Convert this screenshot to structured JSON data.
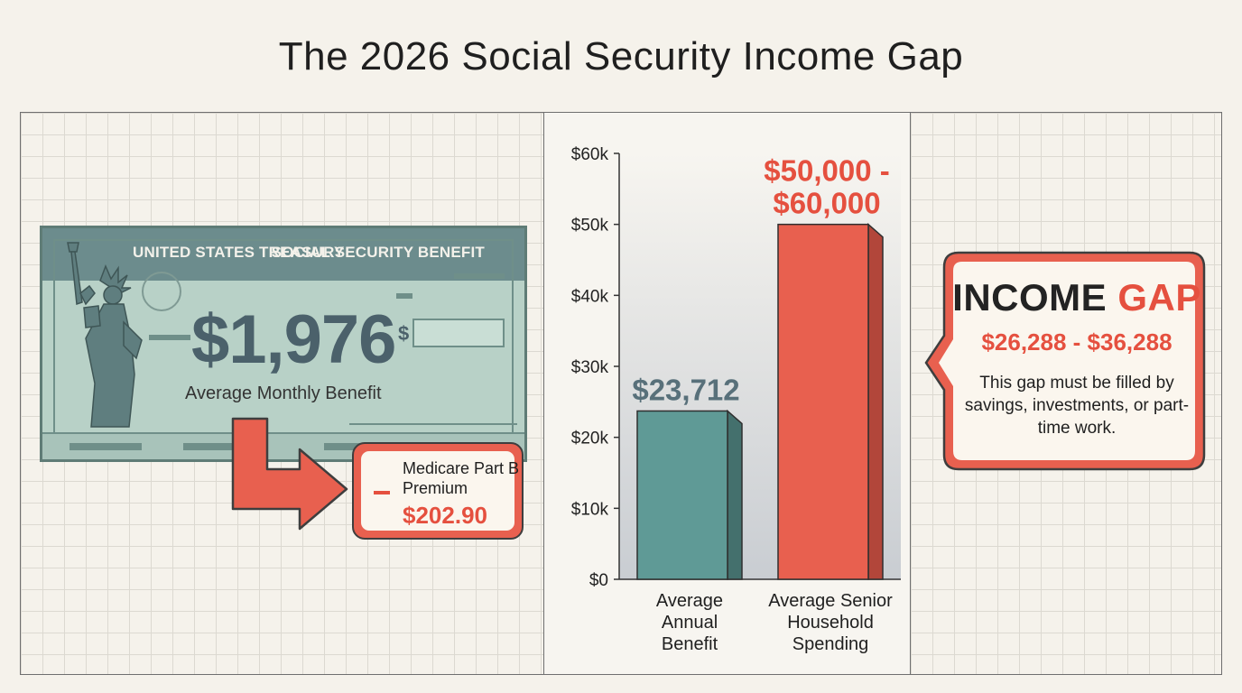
{
  "title": "The 2026 Social Security Income Gap",
  "check": {
    "header_left": "UNITED STATES TREASURY",
    "header_right": "SOCIAL SECURITY BENEFIT",
    "amount": "$1,976",
    "amount_label": "Average Monthly Benefit",
    "dollar_sign": "$"
  },
  "medicare": {
    "label": "Medicare Part B Premium",
    "value": "$202.90"
  },
  "chart_data": {
    "type": "bar",
    "categories": [
      "Average Annual Benefit",
      "Average Senior Household Spending"
    ],
    "category_lines": [
      [
        "Average",
        "Annual",
        "Benefit"
      ],
      [
        "Average Senior",
        "Household",
        "Spending"
      ]
    ],
    "values": [
      23712,
      50000
    ],
    "range_high": [
      null,
      60000
    ],
    "data_labels": [
      [
        "$23,712"
      ],
      [
        "$50,000 -",
        "$60,000"
      ]
    ],
    "colors": [
      "#5f9a96",
      "#e8604f"
    ],
    "ylim": [
      0,
      60000
    ],
    "yticks": [
      0,
      10000,
      20000,
      30000,
      40000,
      50000,
      60000
    ],
    "ytick_labels": [
      "$0",
      "$10k",
      "$20k",
      "$30k",
      "$40k",
      "$50k",
      "$60k"
    ],
    "grid": false
  },
  "callout": {
    "title_dark": "INCOME ",
    "title_red": "GAP",
    "range": "$26,288 - $36,288",
    "note": "This gap must be filled by savings, investments, or part-time work."
  },
  "colors": {
    "accent_red": "#e5503f",
    "teal": "#5f9a96",
    "check_green": "#b8d1c7",
    "background": "#f5f2eb"
  }
}
